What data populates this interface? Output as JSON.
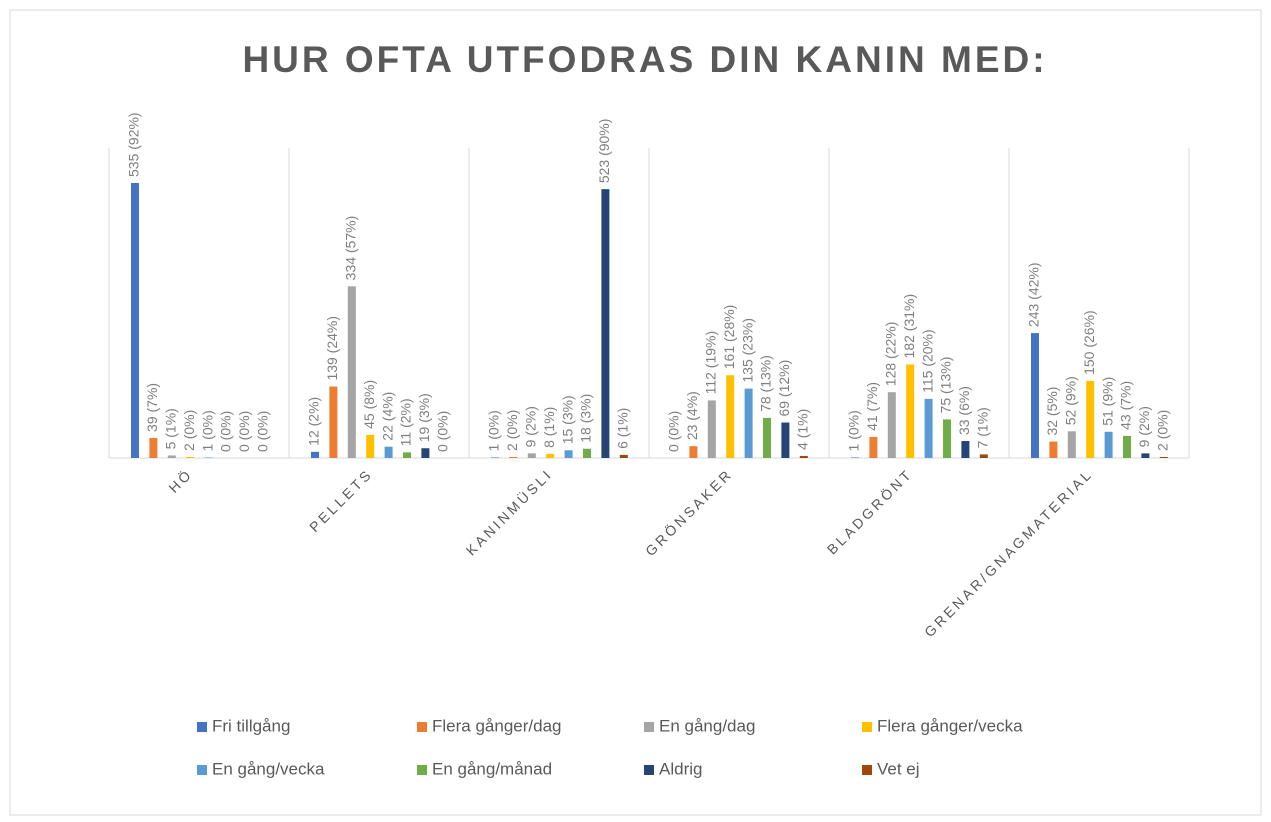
{
  "chart_data": {
    "type": "bar",
    "title": "HUR OFTA UTFODRAS DIN KANIN MED:",
    "categories": [
      "HÖ",
      "PELLETS",
      "KANINMÜSLI",
      "GRÖNSAKER",
      "BLADGRÖNT",
      "GRENAR/GNAGMATERIAL"
    ],
    "series": [
      {
        "name": "Fri tillgång",
        "color": "#4472C4",
        "values": [
          535,
          12,
          1,
          0,
          1,
          243
        ],
        "value_labels": [
          "535 (92%)",
          "12 (2%)",
          "1 (0%)",
          "0 (0%)",
          "1 (0%)",
          "243 (42%)"
        ]
      },
      {
        "name": "Flera gånger/dag",
        "color": "#ED7D31",
        "values": [
          39,
          139,
          2,
          23,
          41,
          32
        ],
        "value_labels": [
          "39 (7%)",
          "139 (24%)",
          "2 (0%)",
          "23 (4%)",
          "41 (7%)",
          "32 (5%)"
        ]
      },
      {
        "name": "En gång/dag",
        "color": "#A5A5A5",
        "values": [
          5,
          334,
          9,
          112,
          128,
          52
        ],
        "value_labels": [
          "5 (1%)",
          "334 (57%)",
          "9 (2%)",
          "112 (19%)",
          "128 (22%)",
          "52 (9%)"
        ]
      },
      {
        "name": "Flera gånger/vecka",
        "color": "#FFC000",
        "values": [
          2,
          45,
          8,
          161,
          182,
          150
        ],
        "value_labels": [
          "2 (0%)",
          "45 (8%)",
          "8 (1%)",
          "161 (28%)",
          "182 (31%)",
          "150 (26%)"
        ]
      },
      {
        "name": "En gång/vecka",
        "color": "#5B9BD5",
        "values": [
          1,
          22,
          15,
          135,
          115,
          51
        ],
        "value_labels": [
          "1 (0%)",
          "22 (4%)",
          "15 (3%)",
          "135 (23%)",
          "115 (20%)",
          "51 (9%)"
        ]
      },
      {
        "name": "En gång/månad",
        "color": "#70AD47",
        "values": [
          0,
          11,
          18,
          78,
          75,
          43
        ],
        "value_labels": [
          "0 (0%)",
          "11 (2%)",
          "18 (3%)",
          "78 (13%)",
          "75 (13%)",
          "43 (7%)"
        ]
      },
      {
        "name": "Aldrig",
        "color": "#264478",
        "values": [
          0,
          19,
          523,
          69,
          33,
          9
        ],
        "value_labels": [
          "0 (0%)",
          "19 (3%)",
          "523 (90%)",
          "69 (12%)",
          "33 (6%)",
          "9 (2%)"
        ]
      },
      {
        "name": "Vet ej",
        "color": "#9E480E",
        "values": [
          0,
          0,
          6,
          4,
          7,
          2
        ],
        "value_labels": [
          "0 (0%)",
          "0 (0%)",
          "6 (1%)",
          "4 (1%)",
          "7 (1%)",
          "2 (0%)"
        ]
      }
    ]
  }
}
